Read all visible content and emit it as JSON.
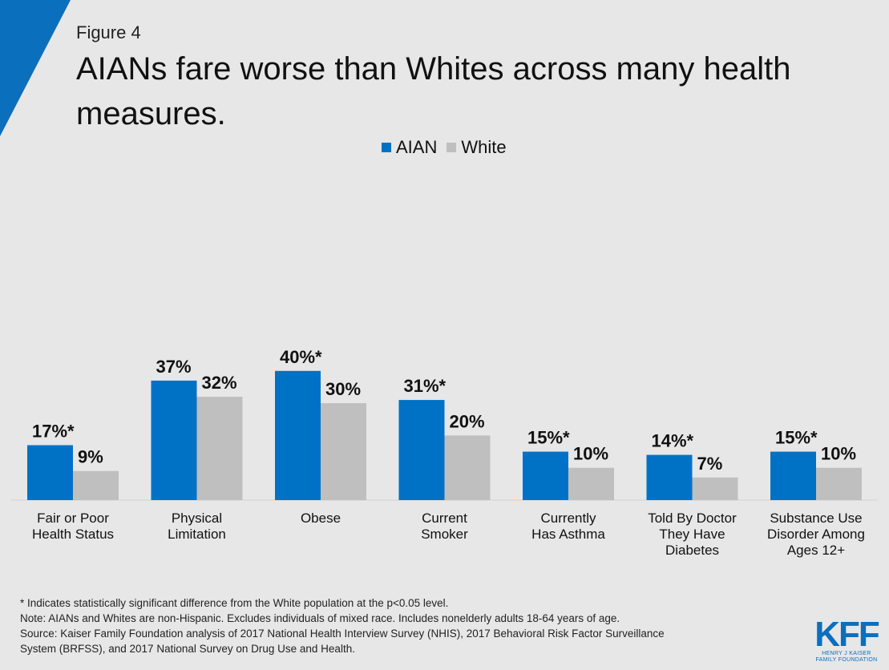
{
  "figure_label": "Figure 4",
  "colors": {
    "aian": "#0072c6",
    "white": "#bfbfbf",
    "accent": "#0a6fbd",
    "background": "#e7e7e7"
  },
  "chart_data": {
    "type": "bar",
    "title": "AIANs fare worse than Whites across many health measures.",
    "legend_position": "top-center",
    "grid": false,
    "ylim": [
      0,
      100
    ],
    "categories": [
      [
        "Fair or Poor",
        "Health Status"
      ],
      [
        "Physical",
        "Limitation"
      ],
      [
        "Obese"
      ],
      [
        "Current",
        "Smoker"
      ],
      [
        "Currently",
        "Has Asthma"
      ],
      [
        "Told By Doctor",
        "They Have",
        "Diabetes"
      ],
      [
        "Substance Use",
        "Disorder Among",
        "Ages 12+"
      ]
    ],
    "series": [
      {
        "name": "AIAN",
        "color": "#0072c6",
        "values": [
          17,
          37,
          40,
          31,
          15,
          14,
          15
        ],
        "labels": [
          "17%*",
          "37%",
          "40%*",
          "31%*",
          "15%*",
          "14%*",
          "15%*"
        ]
      },
      {
        "name": "White",
        "color": "#bfbfbf",
        "values": [
          9,
          32,
          30,
          20,
          10,
          7,
          10
        ],
        "labels": [
          "9%",
          "32%",
          "30%",
          "20%",
          "10%",
          "7%",
          "10%"
        ]
      }
    ]
  },
  "footnotes": {
    "significance": "* Indicates statistically significant difference from the White population at the p<0.05 level.",
    "note": "Note: AIANs and Whites are non-Hispanic. Excludes individuals of mixed race. Includes nonelderly adults 18-64 years of age.",
    "source_line1": "Source: Kaiser Family Foundation analysis of 2017 National Health Interview Survey (NHIS), 2017 Behavioral Risk Factor Surveillance",
    "source_line2": "System (BRFSS), and 2017 National Survey on Drug Use and Health."
  },
  "logo": {
    "mark": "KFF",
    "line1": "HENRY J KAISER",
    "line2": "FAMILY FOUNDATION"
  }
}
